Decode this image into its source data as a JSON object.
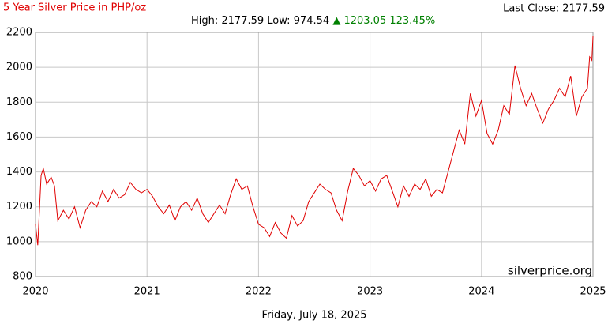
{
  "chart_data": {
    "type": "line",
    "title": "5 Year Silver Price in PHP/oz",
    "last_close": "Last Close: 2177.59",
    "high": "High: 2177.59",
    "low": "Low: 974.54",
    "change": "▲ 1203.05 123.45%",
    "watermark": "silverprice.org",
    "date": "Friday, July 18, 2025",
    "color": "#e00000",
    "grid": true,
    "xlim": [
      2020,
      2025
    ],
    "xticks": [
      2020,
      2021,
      2022,
      2023,
      2024,
      2025
    ],
    "ylim": [
      800,
      2200
    ],
    "yticks": [
      800,
      1000,
      1200,
      1400,
      1600,
      1800,
      2000,
      2200
    ],
    "x": [
      2020.0,
      2020.02,
      2020.05,
      2020.07,
      2020.1,
      2020.14,
      2020.17,
      2020.2,
      2020.25,
      2020.3,
      2020.35,
      2020.4,
      2020.45,
      2020.5,
      2020.55,
      2020.6,
      2020.65,
      2020.7,
      2020.75,
      2020.8,
      2020.85,
      2020.9,
      2020.95,
      2021.0,
      2021.05,
      2021.1,
      2021.15,
      2021.2,
      2021.25,
      2021.3,
      2021.35,
      2021.4,
      2021.45,
      2021.5,
      2021.55,
      2021.6,
      2021.65,
      2021.7,
      2021.75,
      2021.8,
      2021.85,
      2021.9,
      2021.95,
      2022.0,
      2022.05,
      2022.1,
      2022.15,
      2022.2,
      2022.25,
      2022.3,
      2022.35,
      2022.4,
      2022.45,
      2022.5,
      2022.55,
      2022.6,
      2022.65,
      2022.7,
      2022.75,
      2022.8,
      2022.85,
      2022.9,
      2022.95,
      2023.0,
      2023.05,
      2023.1,
      2023.15,
      2023.2,
      2023.25,
      2023.3,
      2023.35,
      2023.4,
      2023.45,
      2023.5,
      2023.55,
      2023.6,
      2023.65,
      2023.7,
      2023.75,
      2023.8,
      2023.85,
      2023.9,
      2023.95,
      2024.0,
      2024.05,
      2024.1,
      2024.15,
      2024.2,
      2024.25,
      2024.3,
      2024.35,
      2024.4,
      2024.45,
      2024.5,
      2024.55,
      2024.6,
      2024.65,
      2024.7,
      2024.75,
      2024.8,
      2024.85,
      2024.9,
      2024.95,
      2024.97,
      2024.99,
      2025.0
    ],
    "values": [
      1100,
      980,
      1380,
      1420,
      1330,
      1370,
      1320,
      1120,
      1180,
      1130,
      1200,
      1080,
      1180,
      1230,
      1200,
      1290,
      1230,
      1300,
      1250,
      1270,
      1340,
      1300,
      1280,
      1300,
      1260,
      1200,
      1160,
      1210,
      1120,
      1200,
      1230,
      1180,
      1250,
      1160,
      1110,
      1160,
      1210,
      1160,
      1270,
      1360,
      1300,
      1320,
      1200,
      1100,
      1080,
      1030,
      1110,
      1050,
      1020,
      1150,
      1090,
      1120,
      1230,
      1280,
      1330,
      1300,
      1280,
      1180,
      1120,
      1290,
      1420,
      1380,
      1320,
      1350,
      1290,
      1360,
      1380,
      1290,
      1200,
      1320,
      1260,
      1330,
      1300,
      1360,
      1260,
      1300,
      1280,
      1400,
      1520,
      1640,
      1560,
      1850,
      1720,
      1810,
      1620,
      1560,
      1640,
      1780,
      1730,
      2010,
      1880,
      1780,
      1850,
      1760,
      1680,
      1760,
      1810,
      1880,
      1830,
      1950,
      1720,
      1830,
      1880,
      2060,
      2040,
      2177.59
    ]
  }
}
